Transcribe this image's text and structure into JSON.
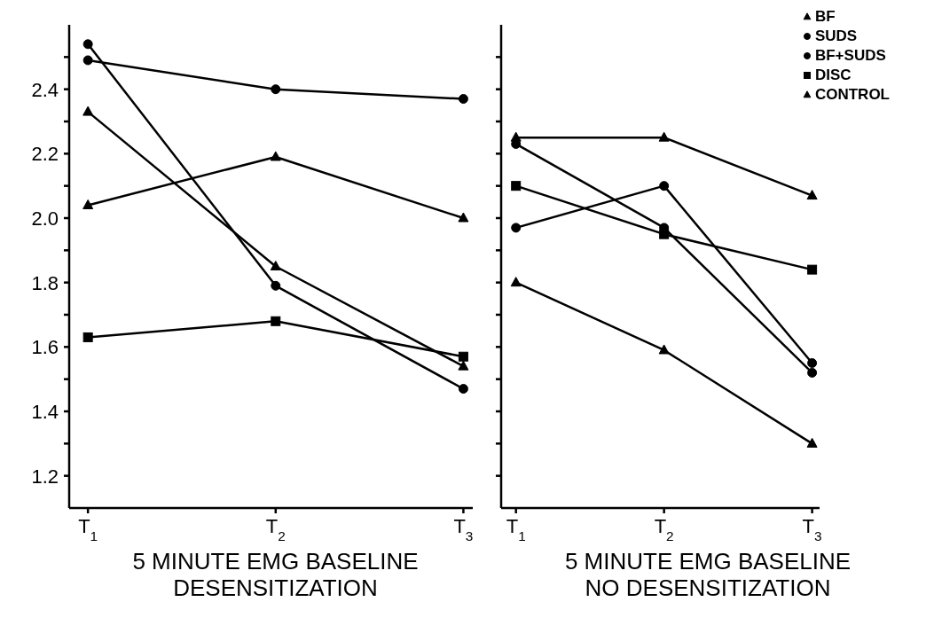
{
  "chart_data": [
    {
      "type": "line",
      "categories": [
        "T$_{1}$",
        "T$_{2}$",
        "T$_{3}$"
      ],
      "xlabel": "5 MINUTE EMG BASELINE\nDESENSITIZATION",
      "ylim": [
        1.1,
        2.6
      ],
      "yticks": [
        1.2,
        {
          "value": 1.3,
          "label": null
        },
        1.4,
        {
          "value": 1.5,
          "label": null
        },
        1.6,
        {
          "value": 1.7,
          "label": null
        },
        1.8,
        {
          "value": 1.9,
          "label": null
        },
        {
          "value": 2.0,
          "label": "2.0"
        },
        {
          "value": 2.1,
          "label": null
        },
        2.2,
        {
          "value": 2.3,
          "label": null
        },
        2.4,
        {
          "value": 2.5,
          "label": null
        }
      ],
      "series": [
        {
          "color": "#000000",
          "marker": "triangle",
          "values": [
            2.33,
            1.85,
            1.54
          ]
        },
        {
          "color": "#000000",
          "marker": "circle",
          "values": [
            2.49,
            2.4,
            2.37
          ]
        },
        {
          "color": "#000000",
          "marker": "circle",
          "values": [
            2.54,
            1.79,
            1.47
          ]
        },
        {
          "color": "#000000",
          "marker": "square",
          "values": [
            1.63,
            1.68,
            1.57
          ]
        },
        {
          "color": "#000000",
          "marker": "triangle",
          "values": [
            2.04,
            2.19,
            2.0
          ]
        }
      ]
    },
    {
      "type": "line",
      "categories": [
        "T$_{1}$",
        "T$_{2}$",
        "T$_{3}$"
      ],
      "xlabel": "5 MINUTE EMG BASELINE\nNO DESENSITIZATION",
      "ylim": [
        1.1,
        2.6
      ],
      "yticks": [
        {
          "value": 1.2,
          "label": null
        },
        {
          "value": 1.3,
          "label": null
        },
        {
          "value": 1.4,
          "label": null
        },
        {
          "value": 1.5,
          "label": null
        },
        {
          "value": 1.6,
          "label": null
        },
        {
          "value": 1.7,
          "label": null
        },
        {
          "value": 1.8,
          "label": null
        },
        {
          "value": 1.9,
          "label": null
        },
        {
          "value": 2.0,
          "label": null
        },
        {
          "value": 2.1,
          "label": null
        },
        {
          "value": 2.2,
          "label": null
        },
        {
          "value": 2.3,
          "label": null
        },
        {
          "value": 2.4,
          "label": null
        },
        {
          "value": 2.5,
          "label": null
        }
      ],
      "tick_labels": "x",
      "legend": "top right",
      "series": [
        {
          "name": "BF",
          "color": "#000000",
          "marker": "triangle",
          "values": [
            1.8,
            1.59,
            1.3
          ]
        },
        {
          "name": "SUDS",
          "color": "#000000",
          "marker": "circle",
          "values": [
            2.23,
            1.97,
            1.52
          ]
        },
        {
          "name": "BF+SUDS",
          "color": "#000000",
          "marker": "circle",
          "values": [
            1.97,
            2.1,
            1.55
          ]
        },
        {
          "name": "DISC",
          "color": "#000000",
          "marker": "square",
          "values": [
            2.1,
            1.95,
            1.84
          ]
        },
        {
          "name": "CONTROL",
          "color": "#000000",
          "marker": "triangle",
          "values": [
            2.25,
            2.25,
            2.07
          ]
        }
      ]
    }
  ]
}
